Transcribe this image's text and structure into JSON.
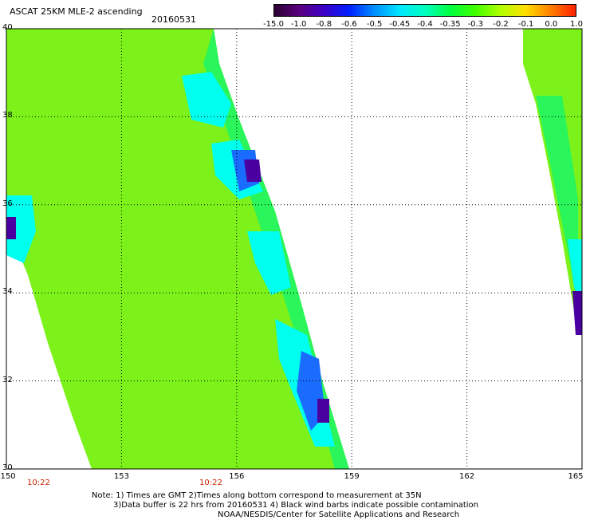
{
  "header": {
    "title": "ASCAT 25KM MLE-2 ascending",
    "date": "20160531"
  },
  "colorbar": {
    "labels": [
      "-15.0",
      "-1.0",
      "-0.8",
      "-0.6",
      "-0.5",
      "-0.45",
      "-0.4",
      "-0.35",
      "-0.3",
      "-0.2",
      "-0.1",
      "0.0",
      "1.0"
    ],
    "stops": [
      "#2a0030",
      "#5a0080",
      "#3b00c8",
      "#0020ff",
      "#0090ff",
      "#00e6ff",
      "#00ffc0",
      "#00ff40",
      "#40ff00",
      "#b0ff00",
      "#ffe000",
      "#ff8000",
      "#ff2000"
    ]
  },
  "map": {
    "lat_labels": [
      "40",
      "38",
      "36",
      "34",
      "32",
      "30"
    ],
    "lon_labels": [
      "150",
      "153",
      "156",
      "159",
      "162",
      "165"
    ],
    "lat_range": [
      30,
      40
    ],
    "lon_range": [
      150,
      165
    ],
    "swath_colors": {
      "main": "#7cf21a",
      "edge": "#2af55a",
      "cyan": "#00ffee",
      "blue": "#1a6cff",
      "dark": "#4a00a0"
    },
    "times": [
      "10:22",
      "10:22"
    ]
  },
  "notes": [
    "Note: 1) Times are GMT 2)Times along bottom correspond to measurement at 35N",
    "3)Data buffer is 22 hrs from 20160531 4) Black wind barbs indicate possible contamination",
    "NOAA/NESDIS/Center for Satellite Applications and Research"
  ]
}
